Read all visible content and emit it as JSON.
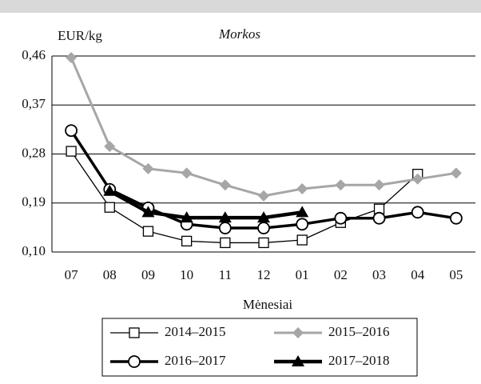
{
  "chart_data": {
    "type": "line",
    "title": "Morkos",
    "y_label": "EUR/kg",
    "x_label": "Mėnesiai",
    "categories": [
      "07",
      "08",
      "09",
      "10",
      "11",
      "12",
      "01",
      "02",
      "03",
      "04",
      "05"
    ],
    "ylim": [
      0.1,
      0.46
    ],
    "yticks": [
      {
        "value": 0.1,
        "label": "0,10"
      },
      {
        "value": 0.19,
        "label": "0,19"
      },
      {
        "value": 0.28,
        "label": "0,28"
      },
      {
        "value": 0.37,
        "label": "0,37"
      },
      {
        "value": 0.46,
        "label": "0,46"
      }
    ],
    "grid": true,
    "series": [
      {
        "name": "2014–2015",
        "color": "#000000",
        "marker": "square",
        "values": [
          0.285,
          0.182,
          0.138,
          0.12,
          0.117,
          0.117,
          0.122,
          0.154,
          0.179,
          0.243,
          null
        ]
      },
      {
        "name": "2015–2016",
        "color": "#a6a6a6",
        "marker": "diamond",
        "values": [
          0.457,
          0.294,
          0.253,
          0.245,
          0.223,
          0.203,
          0.216,
          0.223,
          0.223,
          0.234,
          0.245
        ]
      },
      {
        "name": "2016–2017",
        "color": "#000000",
        "marker": "circle",
        "values": [
          0.323,
          0.215,
          0.181,
          0.151,
          0.144,
          0.144,
          0.151,
          0.162,
          0.162,
          0.173,
          0.162
        ]
      },
      {
        "name": "2017–2018",
        "color": "#000000",
        "marker": "triangle",
        "values": [
          null,
          0.212,
          0.173,
          0.163,
          0.163,
          0.163,
          0.173,
          null,
          null,
          null,
          null
        ]
      }
    ]
  }
}
